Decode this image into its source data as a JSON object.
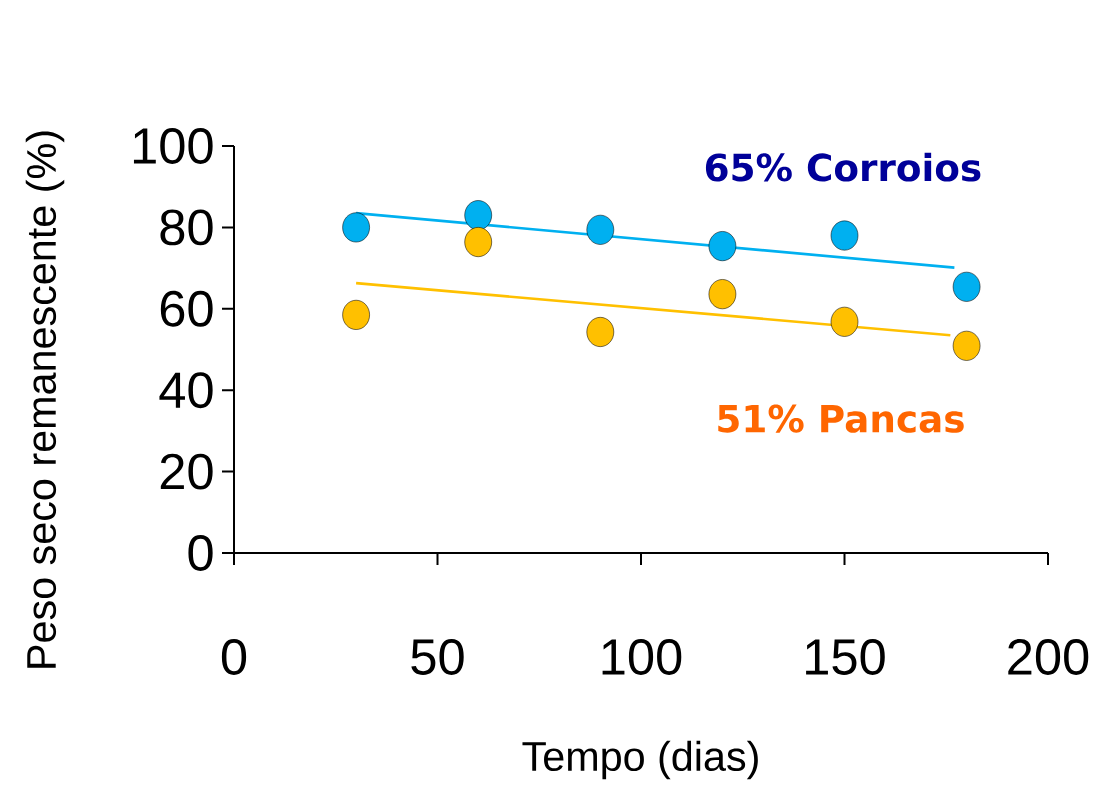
{
  "chart_data": {
    "type": "scatter",
    "xlabel": "Tempo (dias)",
    "ylabel": "Peso seco remanescente (%)",
    "xlim": [
      0,
      200
    ],
    "ylim": [
      0,
      100
    ],
    "xticks": [
      0,
      50,
      100,
      150,
      200
    ],
    "yticks": [
      0,
      20,
      40,
      60,
      80,
      100
    ],
    "x": [
      30,
      60,
      90,
      120,
      150,
      180
    ],
    "grid": false,
    "series": [
      {
        "color": "#00b0f0",
        "marker": "circle",
        "values": [
          80,
          83,
          79.4,
          75.4,
          78,
          65.4
        ]
      },
      {
        "color": "#ffc000",
        "marker": "circle",
        "values": [
          58.5,
          76.4,
          54.3,
          63.6,
          56.8,
          50.9
        ]
      },
      {
        "type": "line",
        "marker": "none",
        "color": "#00b0f0",
        "x": [
          30,
          177
        ],
        "values": [
          83.5,
          70.1
        ]
      },
      {
        "type": "line",
        "marker": "none",
        "color": "#ffc000",
        "x": [
          30,
          176
        ],
        "values": [
          66.3,
          53.5
        ]
      }
    ],
    "annotations": [
      "65% Corroios",
      "51% Pancas"
    ]
  }
}
